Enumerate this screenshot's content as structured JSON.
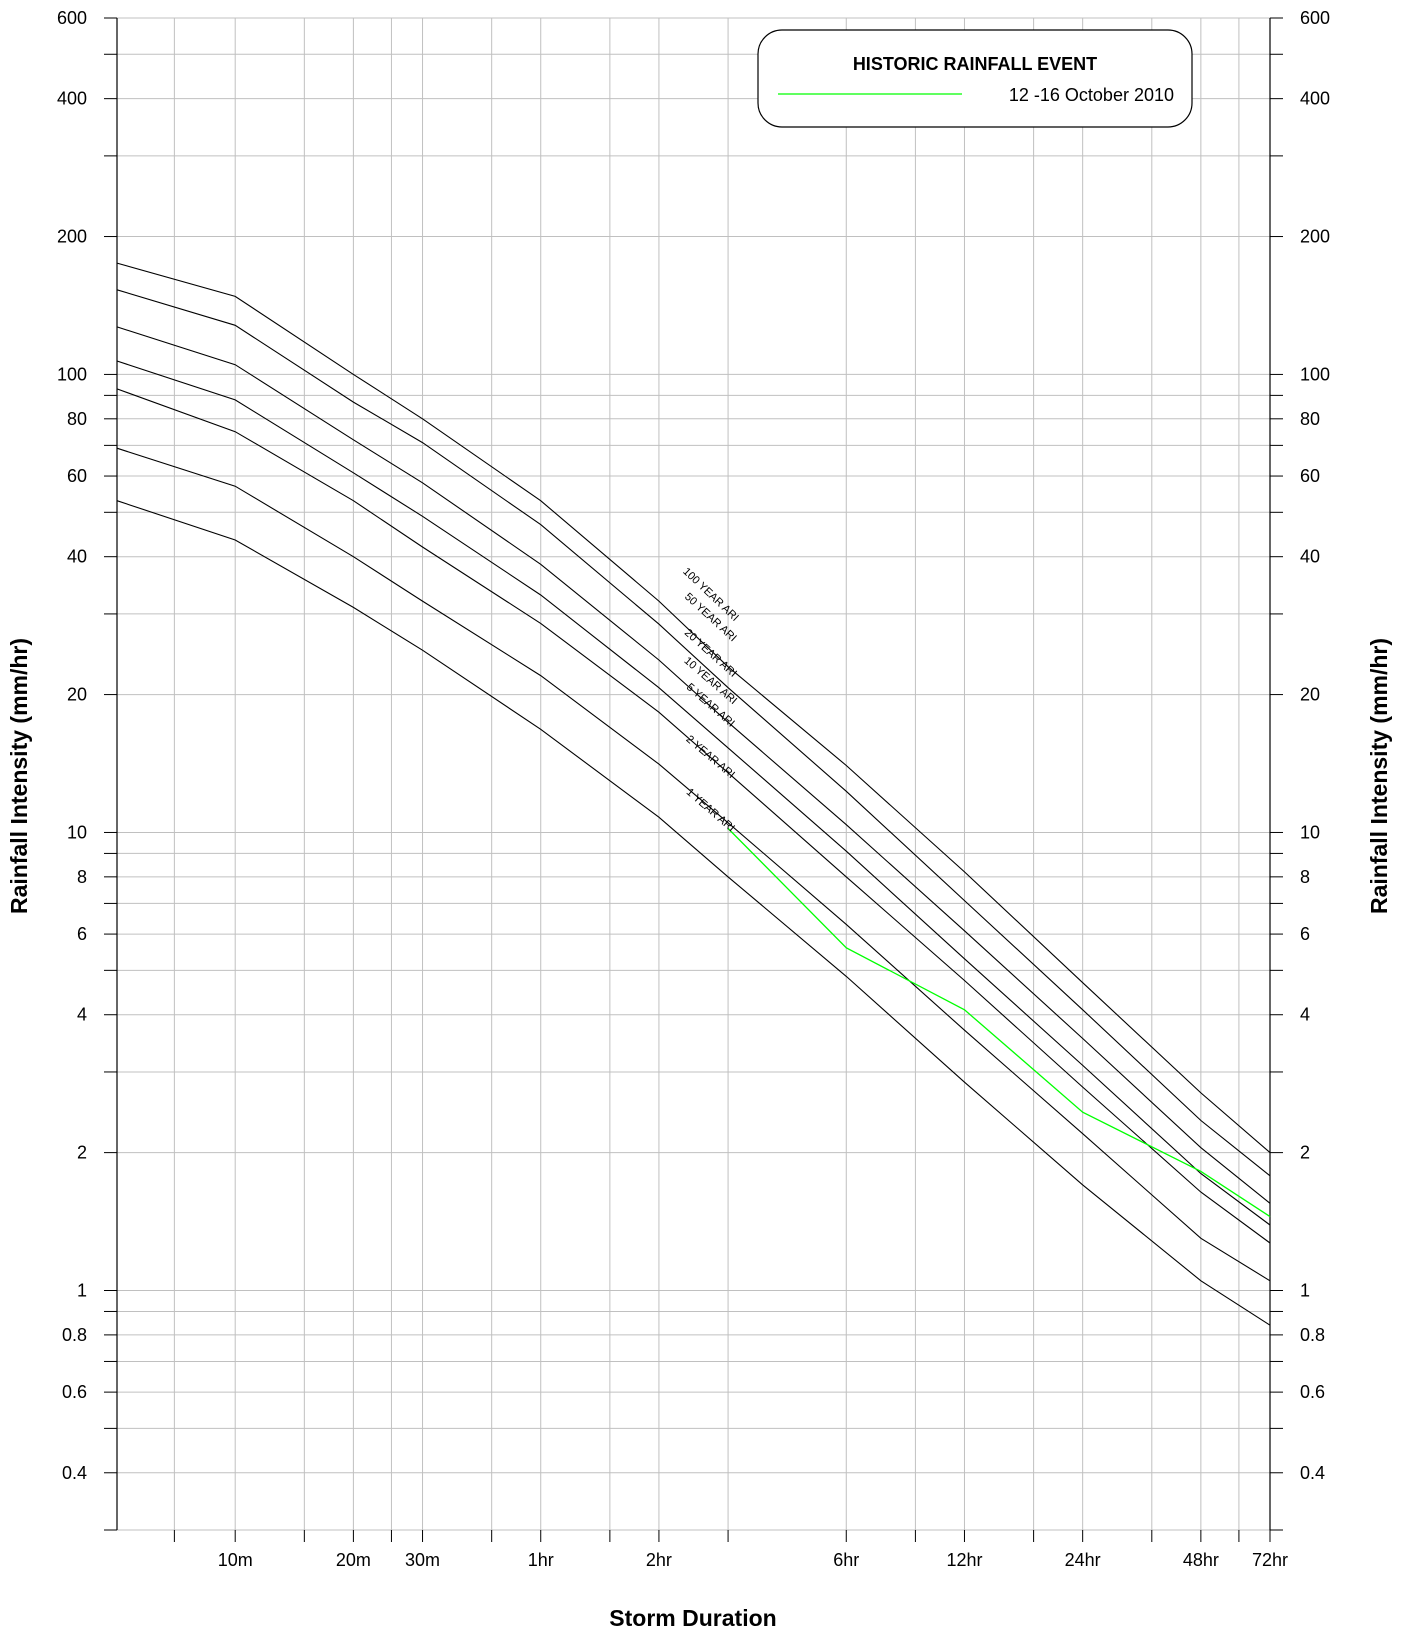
{
  "chart_data": {
    "type": "line",
    "title": "",
    "xlabel": "Storm Duration",
    "ylabel": "Rainfall Intensity (mm/hr)",
    "x_scale": "log",
    "y_scale": "log",
    "x_units": "minutes",
    "xlim": [
      5,
      4320
    ],
    "ylim": [
      0.3,
      600
    ],
    "x_tick_labels": [
      {
        "x": 10,
        "label": "10m"
      },
      {
        "x": 20,
        "label": "20m"
      },
      {
        "x": 30,
        "label": "30m"
      },
      {
        "x": 60,
        "label": "1hr"
      },
      {
        "x": 120,
        "label": "2hr"
      },
      {
        "x": 360,
        "label": "6hr"
      },
      {
        "x": 720,
        "label": "12hr"
      },
      {
        "x": 1440,
        "label": "24hr"
      },
      {
        "x": 2880,
        "label": "48hr"
      },
      {
        "x": 4320,
        "label": "72hr"
      }
    ],
    "x_grid": [
      7,
      10,
      15,
      20,
      25,
      30,
      45,
      60,
      90,
      120,
      180,
      360,
      540,
      720,
      1080,
      1440,
      2160,
      2880,
      3600,
      4320
    ],
    "y_tick_labels": [
      {
        "y": 0.4,
        "label": "0.4"
      },
      {
        "y": 0.6,
        "label": "0.6"
      },
      {
        "y": 0.8,
        "label": "0.8"
      },
      {
        "y": 1,
        "label": "1"
      },
      {
        "y": 2,
        "label": "2"
      },
      {
        "y": 4,
        "label": "4"
      },
      {
        "y": 6,
        "label": "6"
      },
      {
        "y": 8,
        "label": "8"
      },
      {
        "y": 10,
        "label": "10"
      },
      {
        "y": 20,
        "label": "20"
      },
      {
        "y": 40,
        "label": "40"
      },
      {
        "y": 60,
        "label": "60"
      },
      {
        "y": 80,
        "label": "80"
      },
      {
        "y": 100,
        "label": "100"
      },
      {
        "y": 200,
        "label": "200"
      },
      {
        "y": 400,
        "label": "400"
      },
      {
        "y": 600,
        "label": "600"
      }
    ],
    "y_grid": [
      0.3,
      0.4,
      0.5,
      0.6,
      0.7,
      0.8,
      0.9,
      1,
      2,
      3,
      4,
      5,
      6,
      7,
      8,
      9,
      10,
      20,
      30,
      40,
      50,
      60,
      70,
      80,
      90,
      100,
      200,
      300,
      400,
      500,
      600
    ],
    "grid": true,
    "legend": {
      "position": "top-right",
      "title": "HISTORIC RAINFALL EVENT",
      "entries": [
        {
          "label": "12 -16 October 2010",
          "color": "#00ff00"
        }
      ]
    },
    "colors": {
      "ari": "#000000",
      "event": "#00ff00",
      "grid": "#c0c0c0"
    },
    "x": [
      5,
      10,
      20,
      30,
      60,
      120,
      180,
      360,
      720,
      1440,
      2880,
      4320
    ],
    "series": [
      {
        "name": "100 YEAR ARI",
        "values": [
          175,
          148,
          100,
          80,
          53,
          32,
          23,
          14,
          8.2,
          4.7,
          2.7,
          2.0
        ]
      },
      {
        "name": "50 YEAR ARI",
        "values": [
          153,
          128,
          87,
          71,
          47,
          28.5,
          20.7,
          12.3,
          7.1,
          4.1,
          2.35,
          1.78
        ]
      },
      {
        "name": "20 YEAR ARI",
        "values": [
          127,
          105,
          72,
          58,
          38.5,
          23.8,
          17.4,
          10.4,
          6.1,
          3.55,
          2.05,
          1.55
        ]
      },
      {
        "name": "10 YEAR ARI",
        "values": [
          107,
          88,
          61,
          49,
          33,
          20.7,
          15.3,
          9.1,
          5.3,
          3.1,
          1.8,
          1.39
        ]
      },
      {
        "name": "5 YEAR ARI",
        "values": [
          93,
          75,
          53,
          42,
          28.6,
          18.3,
          13.5,
          8.0,
          4.75,
          2.78,
          1.64,
          1.27
        ]
      },
      {
        "name": "2 YEAR ARI",
        "values": [
          69,
          57,
          40,
          32,
          22,
          14.1,
          10.5,
          6.3,
          3.7,
          2.2,
          1.3,
          1.05
        ]
      },
      {
        "name": "1 YEAR ARI",
        "values": [
          53,
          43.5,
          31,
          25,
          16.8,
          10.8,
          8.0,
          4.85,
          2.85,
          1.7,
          1.05,
          0.84
        ]
      }
    ],
    "event_series": {
      "name": "12 -16 October 2010",
      "x": [
        180,
        360,
        720,
        1440,
        2880,
        4320
      ],
      "values": [
        10.2,
        5.6,
        4.1,
        2.45,
        1.82,
        1.45
      ]
    }
  }
}
